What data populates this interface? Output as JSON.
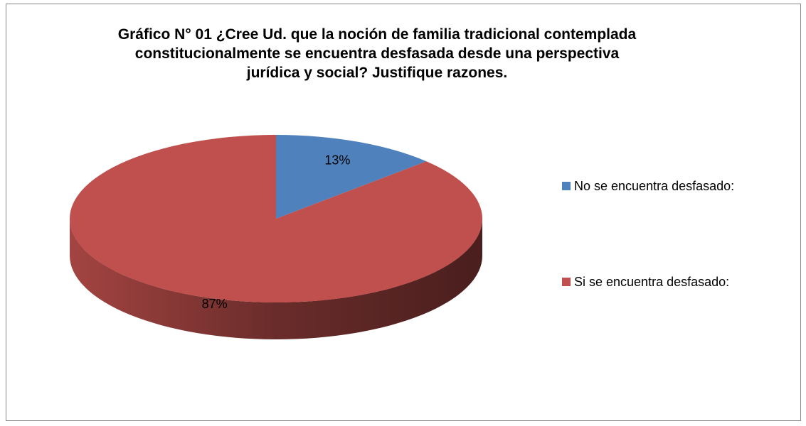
{
  "chart_data": {
    "type": "pie",
    "title": "Gráfico N° 01 ¿Cree Ud. que la noción de familia tradicional contemplada constitucionalmente se encuentra desfasada desde una perspectiva jurídica y social? Justifique razones.",
    "categories": [
      "No se encuentra desfasado:",
      "Si se encuentra desfasado:"
    ],
    "values": [
      13,
      87
    ],
    "value_labels": [
      "13%",
      "87%"
    ],
    "colors": [
      "#4f81bd",
      "#c0504d"
    ],
    "legend": "right",
    "three_d": true
  }
}
